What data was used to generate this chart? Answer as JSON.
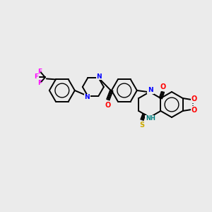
{
  "background_color": "#ebebeb",
  "bond_color": "#000000",
  "bond_width": 1.4,
  "atom_colors": {
    "N": "#0000ff",
    "O": "#ff0000",
    "S": "#ccaa00",
    "F": "#ff00ff",
    "NH": "#008080",
    "C": "#000000"
  },
  "font_size": 6.5,
  "fig_width": 3.0,
  "fig_height": 3.0,
  "dpi": 100,
  "xlim": [
    0,
    300
  ],
  "ylim": [
    0,
    300
  ]
}
